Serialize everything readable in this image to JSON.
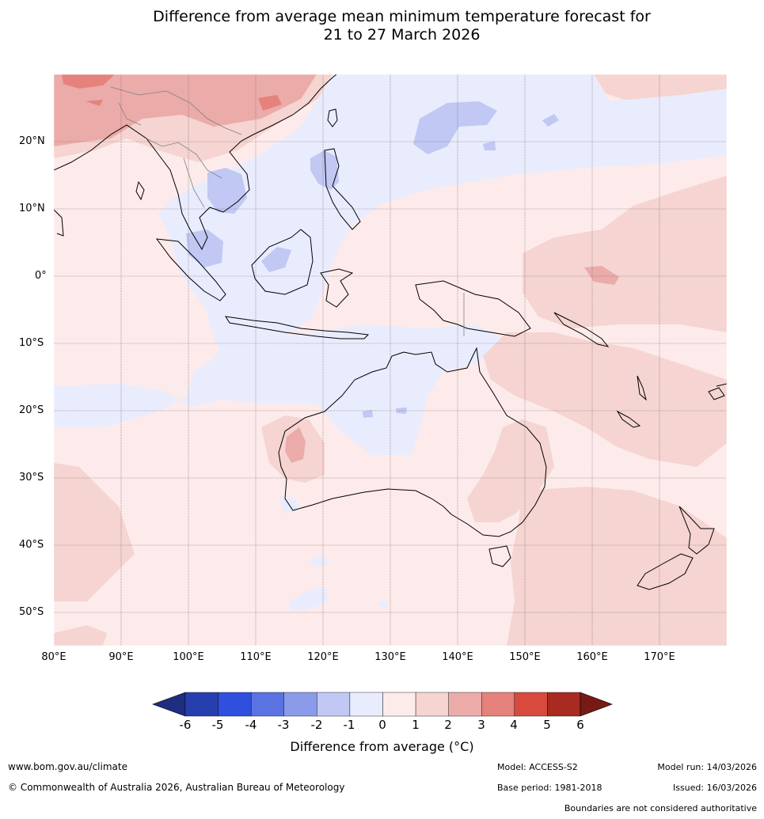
{
  "title_line1": "Difference from average mean minimum temperature forecast for",
  "title_line2": "21 to 27 March 2026",
  "latitude_labels": [
    "20°N",
    "10°N",
    "0°",
    "10°S",
    "20°S",
    "30°S",
    "40°S",
    "50°S"
  ],
  "longitude_labels": [
    "80°E",
    "90°E",
    "100°E",
    "110°E",
    "120°E",
    "130°E",
    "140°E",
    "150°E",
    "160°E",
    "170°E"
  ],
  "map_extent": {
    "lon_min": 80,
    "lon_max": 180,
    "lat_min": -55,
    "lat_max": 30
  },
  "colorbar": {
    "ticks": [
      "-6",
      "-5",
      "-4",
      "-3",
      "-2",
      "-1",
      "0",
      "1",
      "2",
      "3",
      "4",
      "5",
      "6"
    ],
    "colors": [
      "#1f2d80",
      "#273fae",
      "#2f4fde",
      "#5a72e2",
      "#8a9bea",
      "#c0c8f3",
      "#e9ecfd",
      "#fcebea",
      "#f5d4d1",
      "#ebaba8",
      "#e5827c",
      "#d84a3e",
      "#a82a20",
      "#771a16"
    ],
    "label": "Difference from average (°C)"
  },
  "footer": {
    "website": "www.bom.gov.au/climate",
    "copyright": "© Commonwealth of Australia 2026, Australian Bureau of Meteorology",
    "model": "Model: ACCESS-S2",
    "base_period": "Base period: 1981-2018",
    "model_run": "Model run: 14/03/2026",
    "issued": "Issued: 16/03/2026",
    "boundaries_note": "Boundaries are not considered authoritative"
  }
}
